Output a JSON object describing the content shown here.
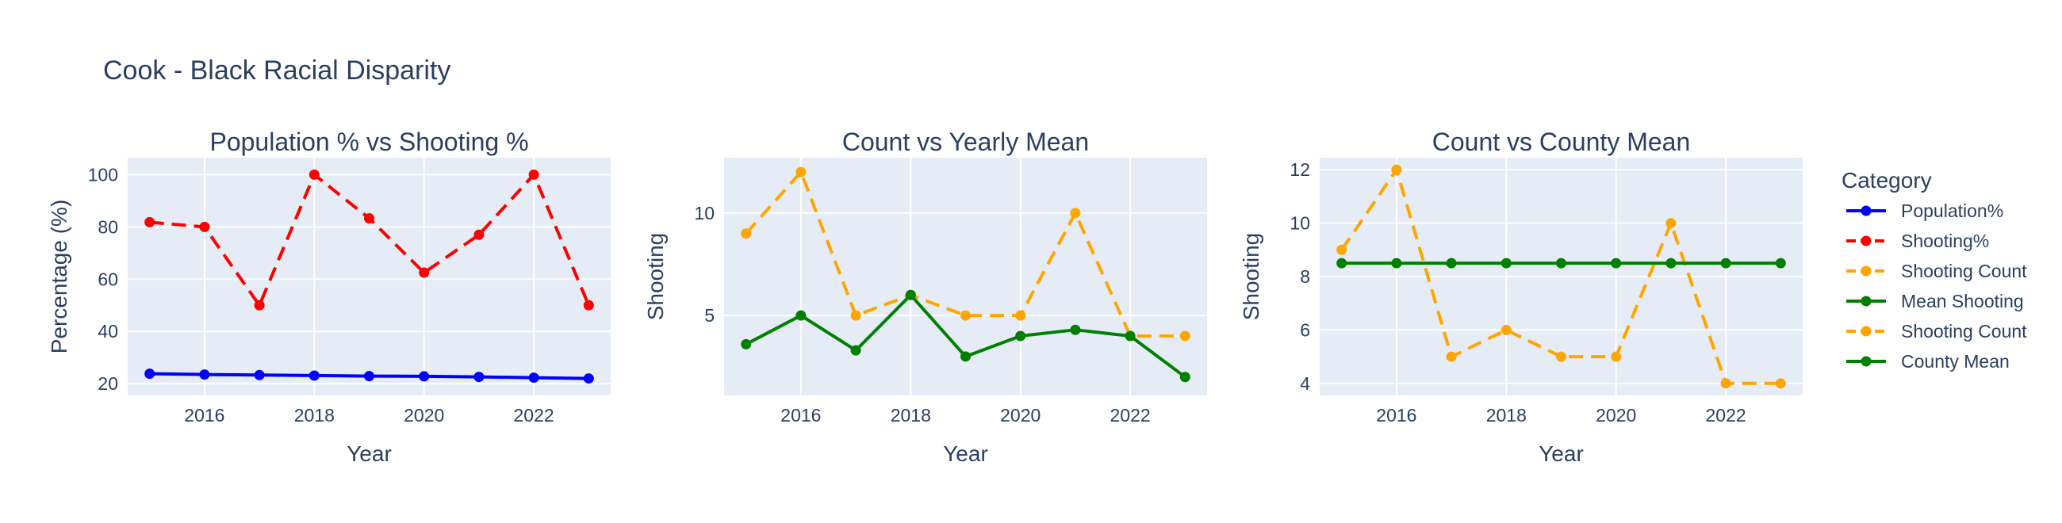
{
  "figure": {
    "title": "Cook - Black Racial Disparity"
  },
  "legend": {
    "title": "Category",
    "placement": "right",
    "entries": [
      {
        "label": "Population%",
        "color": "#0000ff",
        "dash": "solid"
      },
      {
        "label": "Shooting%",
        "color": "#ff0000",
        "dash": "dash"
      },
      {
        "label": "Shooting Count",
        "color": "#ffa500",
        "dash": "dash"
      },
      {
        "label": "Mean Shooting",
        "color": "#008000",
        "dash": "solid"
      },
      {
        "label": "Shooting Count",
        "color": "#ffa500",
        "dash": "dash"
      },
      {
        "label": "County Mean",
        "color": "#008000",
        "dash": "solid"
      }
    ]
  },
  "chart_data": [
    {
      "type": "line",
      "title": "Population % vs Shooting %",
      "xlabel": "Year",
      "ylabel": "Percentage (%)",
      "xlim": [
        2014.6,
        2023.4
      ],
      "ylim": [
        15.5,
        106.5
      ],
      "xticks": [
        2016,
        2018,
        2020,
        2022
      ],
      "yticks": [
        20,
        40,
        60,
        80,
        100
      ],
      "grid": true,
      "x": [
        2015,
        2016,
        2017,
        2018,
        2019,
        2020,
        2021,
        2022,
        2023
      ],
      "series": [
        {
          "name": "Population%",
          "color": "#0000ff",
          "dash": "solid",
          "values": [
            23.8,
            23.5,
            23.3,
            23.1,
            22.9,
            22.8,
            22.6,
            22.3,
            22.0
          ]
        },
        {
          "name": "Shooting%",
          "color": "#ff0000",
          "dash": "dash",
          "values": [
            81.8,
            80.0,
            50.0,
            100.0,
            83.3,
            62.5,
            77.0,
            100.0,
            50.0
          ]
        }
      ]
    },
    {
      "type": "line",
      "title": "Count vs Yearly Mean",
      "xlabel": "Year",
      "ylabel": "Shooting",
      "xlim": [
        2014.6,
        2023.4
      ],
      "ylim": [
        1.1,
        12.7
      ],
      "xticks": [
        2016,
        2018,
        2020,
        2022
      ],
      "yticks": [
        5,
        10
      ],
      "grid": true,
      "x": [
        2015,
        2016,
        2017,
        2018,
        2019,
        2020,
        2021,
        2022,
        2023
      ],
      "series": [
        {
          "name": "Shooting Count",
          "color": "#ffa500",
          "dash": "dash",
          "values": [
            9,
            12,
            5,
            6,
            5,
            5,
            10,
            4,
            4
          ]
        },
        {
          "name": "Mean Shooting",
          "color": "#008000",
          "dash": "solid",
          "values": [
            3.6,
            5.0,
            3.3,
            6.0,
            3.0,
            4.0,
            4.3,
            4.0,
            2.0
          ]
        }
      ]
    },
    {
      "type": "line",
      "title": "Count vs County Mean",
      "xlabel": "Year",
      "ylabel": "Shooting",
      "xlim": [
        2014.6,
        2023.4
      ],
      "ylim": [
        3.55,
        12.45
      ],
      "xticks": [
        2016,
        2018,
        2020,
        2022
      ],
      "yticks": [
        4,
        6,
        8,
        10,
        12
      ],
      "grid": true,
      "x": [
        2015,
        2016,
        2017,
        2018,
        2019,
        2020,
        2021,
        2022,
        2023
      ],
      "series": [
        {
          "name": "Shooting Count",
          "color": "#ffa500",
          "dash": "dash",
          "values": [
            9,
            12,
            5,
            6,
            5,
            5,
            10,
            4,
            4
          ]
        },
        {
          "name": "County Mean",
          "color": "#008000",
          "dash": "solid",
          "values": [
            8.5,
            8.5,
            8.5,
            8.5,
            8.5,
            8.5,
            8.5,
            8.5,
            8.5
          ]
        }
      ]
    }
  ]
}
